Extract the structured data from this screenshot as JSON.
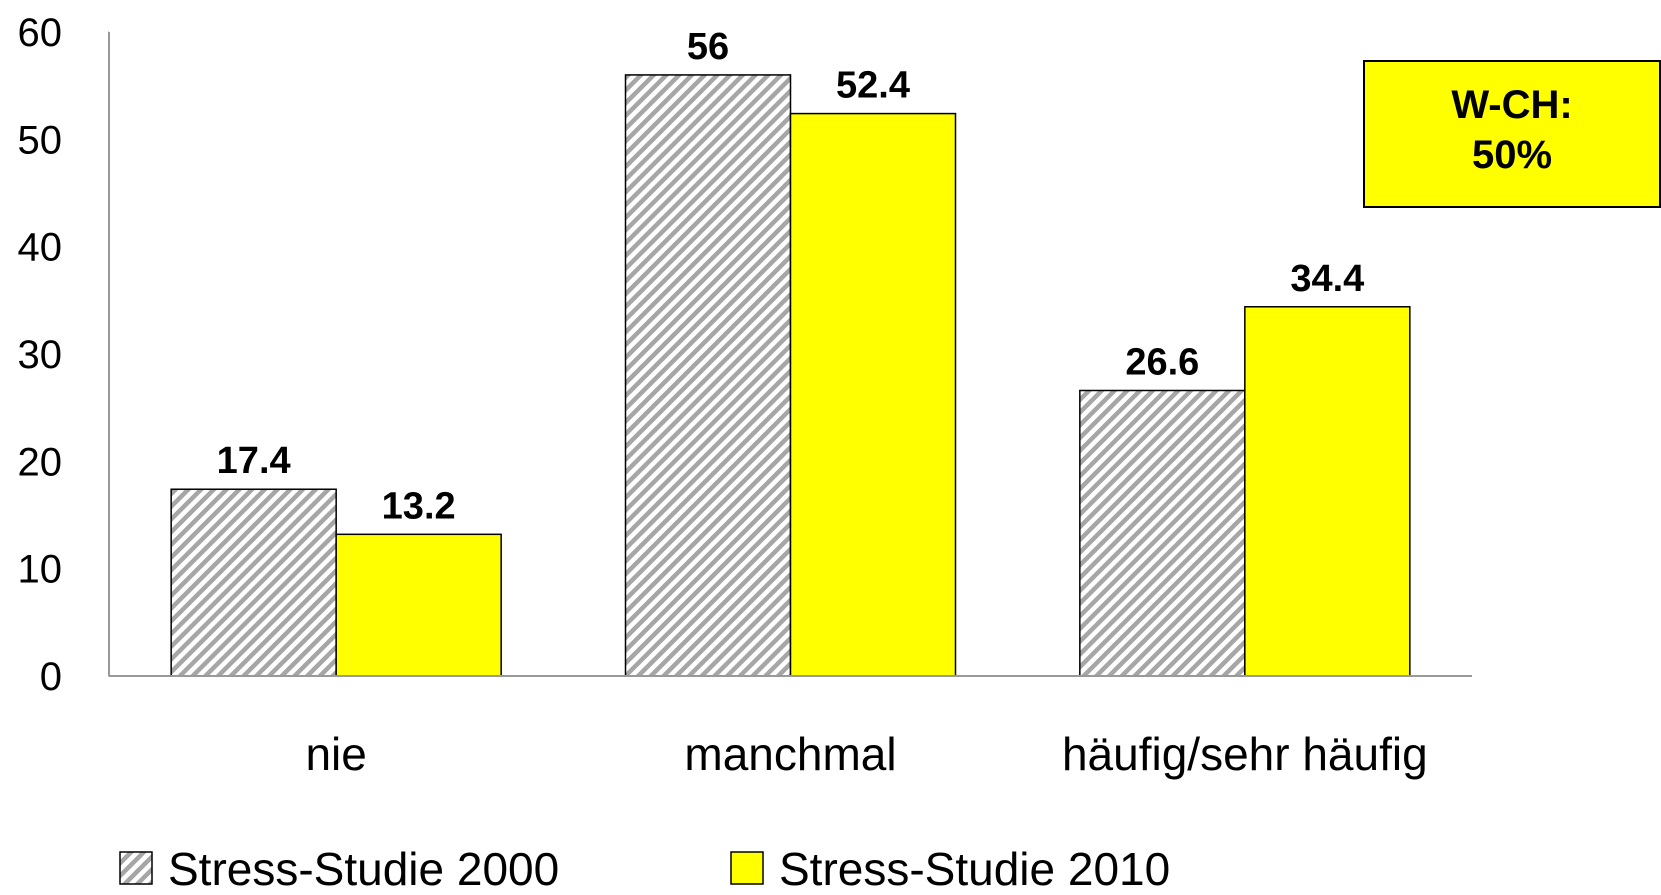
{
  "chart_data": {
    "type": "bar",
    "categories": [
      "nie",
      "manchmal",
      "häufig/sehr häufig"
    ],
    "series": [
      {
        "name": "Stress-Studie 2000",
        "color": "#a6a6a6",
        "pattern": "hatch",
        "values": [
          17.4,
          56,
          26.6
        ]
      },
      {
        "name": "Stress-Studie 2010",
        "color": "#ffff00",
        "values": [
          13.2,
          52.4,
          34.4
        ]
      }
    ],
    "ylim": [
      0,
      60
    ],
    "yticks": [
      0,
      10,
      20,
      30,
      40,
      50,
      60
    ],
    "annotation": [
      "W-CH:",
      "50%"
    ],
    "legend": "bottom"
  }
}
